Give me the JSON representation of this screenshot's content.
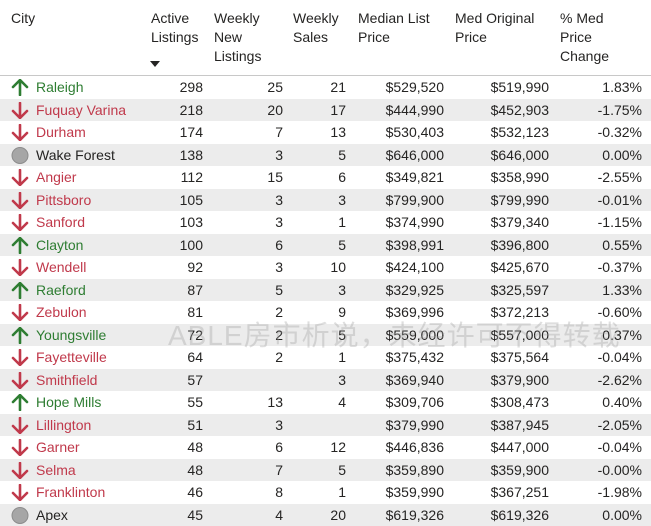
{
  "headers": {
    "city": "City",
    "active": "Active\nListings",
    "new": "Weekly\nNew\nListings",
    "sales": "Weekly\nSales",
    "median": "Median List\nPrice",
    "original": "Med Original\nPrice",
    "change": "% Med\nPrice\nChange"
  },
  "watermark": "ABLE房市析说，未经许可不得转载",
  "colors": {
    "up": "#2e7d32",
    "down": "#c0394b",
    "flat_icon": "#a6a6a6"
  },
  "rows": [
    {
      "trend": "up",
      "city": "Raleigh",
      "active": "298",
      "new": "25",
      "sales": "21",
      "median": "$529,520",
      "original": "$519,990",
      "change": "1.83%"
    },
    {
      "trend": "down",
      "city": "Fuquay Varina",
      "active": "218",
      "new": "20",
      "sales": "17",
      "median": "$444,990",
      "original": "$452,903",
      "change": "-1.75%"
    },
    {
      "trend": "down",
      "city": "Durham",
      "active": "174",
      "new": "7",
      "sales": "13",
      "median": "$530,403",
      "original": "$532,123",
      "change": "-0.32%"
    },
    {
      "trend": "flat",
      "city": "Wake Forest",
      "active": "138",
      "new": "3",
      "sales": "5",
      "median": "$646,000",
      "original": "$646,000",
      "change": "0.00%"
    },
    {
      "trend": "down",
      "city": "Angier",
      "active": "112",
      "new": "15",
      "sales": "6",
      "median": "$349,821",
      "original": "$358,990",
      "change": "-2.55%"
    },
    {
      "trend": "down",
      "city": "Pittsboro",
      "active": "105",
      "new": "3",
      "sales": "3",
      "median": "$799,900",
      "original": "$799,990",
      "change": "-0.01%"
    },
    {
      "trend": "down",
      "city": "Sanford",
      "active": "103",
      "new": "3",
      "sales": "1",
      "median": "$374,990",
      "original": "$379,340",
      "change": "-1.15%"
    },
    {
      "trend": "up",
      "city": "Clayton",
      "active": "100",
      "new": "6",
      "sales": "5",
      "median": "$398,991",
      "original": "$396,800",
      "change": "0.55%"
    },
    {
      "trend": "down",
      "city": "Wendell",
      "active": "92",
      "new": "3",
      "sales": "10",
      "median": "$424,100",
      "original": "$425,670",
      "change": "-0.37%"
    },
    {
      "trend": "up",
      "city": "Raeford",
      "active": "87",
      "new": "5",
      "sales": "3",
      "median": "$329,925",
      "original": "$325,597",
      "change": "1.33%"
    },
    {
      "trend": "down",
      "city": "Zebulon",
      "active": "81",
      "new": "2",
      "sales": "9",
      "median": "$369,996",
      "original": "$372,213",
      "change": "-0.60%"
    },
    {
      "trend": "up",
      "city": "Youngsville",
      "active": "72",
      "new": "2",
      "sales": "5",
      "median": "$559,000",
      "original": "$557,000",
      "change": "0.37%"
    },
    {
      "trend": "down",
      "city": "Fayetteville",
      "active": "64",
      "new": "2",
      "sales": "1",
      "median": "$375,432",
      "original": "$375,564",
      "change": "-0.04%"
    },
    {
      "trend": "down",
      "city": "Smithfield",
      "active": "57",
      "new": "",
      "sales": "3",
      "median": "$369,940",
      "original": "$379,900",
      "change": "-2.62%"
    },
    {
      "trend": "up",
      "city": "Hope Mills",
      "active": "55",
      "new": "13",
      "sales": "4",
      "median": "$309,706",
      "original": "$308,473",
      "change": "0.40%"
    },
    {
      "trend": "down",
      "city": "Lillington",
      "active": "51",
      "new": "3",
      "sales": "",
      "median": "$379,990",
      "original": "$387,945",
      "change": "-2.05%"
    },
    {
      "trend": "down",
      "city": "Garner",
      "active": "48",
      "new": "6",
      "sales": "12",
      "median": "$446,836",
      "original": "$447,000",
      "change": "-0.04%"
    },
    {
      "trend": "down",
      "city": "Selma",
      "active": "48",
      "new": "7",
      "sales": "5",
      "median": "$359,890",
      "original": "$359,900",
      "change": "-0.00%"
    },
    {
      "trend": "down",
      "city": "Franklinton",
      "active": "46",
      "new": "8",
      "sales": "1",
      "median": "$359,990",
      "original": "$367,251",
      "change": "-1.98%"
    },
    {
      "trend": "flat",
      "city": "Apex",
      "active": "45",
      "new": "4",
      "sales": "20",
      "median": "$619,326",
      "original": "$619,326",
      "change": "0.00%"
    }
  ]
}
